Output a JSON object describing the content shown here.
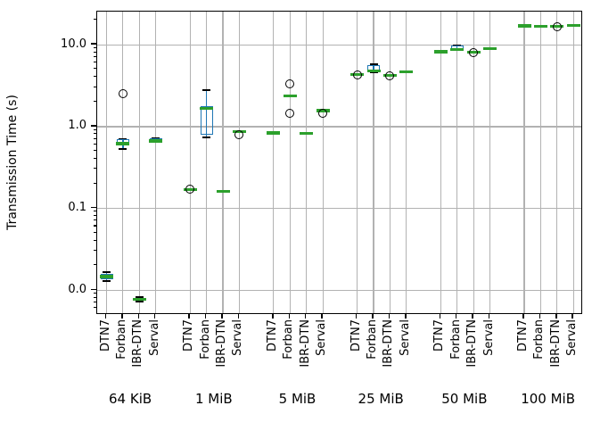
{
  "figure": {
    "ylabel": "Transmission Time (s)"
  },
  "colors": {
    "box_edge": "#1f77b4",
    "median": "#2ca02c",
    "whisker": "#1f77b4",
    "cap": "#000000",
    "flier_edge": "#000000",
    "grid": "#b2b2b2",
    "frame": "#000000",
    "background": "#ffffff"
  },
  "chart_data": {
    "type": "boxplot",
    "title": "",
    "xlabel": "",
    "ylabel": "Transmission Time (s)",
    "y_scale": "log",
    "ylim": [
      0.005,
      25.5
    ],
    "grid": "on",
    "legend": "none",
    "y_ticks": [
      {
        "value": 10,
        "label": "10.0"
      },
      {
        "value": 1,
        "label": "1.0"
      },
      {
        "value": 0.1,
        "label": "0.1"
      },
      {
        "value": 0.01,
        "label": "0.0"
      }
    ],
    "groups": [
      "64 KiB",
      "1 MiB",
      "5 MiB",
      "25 MiB",
      "50 MiB",
      "100 MiB"
    ],
    "tools": [
      "DTN7",
      "Forban",
      "IBR-DTN",
      "Serval"
    ],
    "boxes": [
      {
        "group": "64 KiB",
        "tool": "DTN7",
        "whislo": 0.013,
        "q1": 0.0135,
        "med": 0.0147,
        "q3": 0.0158,
        "whishi": 0.0165,
        "fliers": []
      },
      {
        "group": "64 KiB",
        "tool": "Forban",
        "whislo": 0.53,
        "q1": 0.6,
        "med": 0.62,
        "q3": 0.7,
        "whishi": 0.7,
        "fliers": [
          2.5
        ]
      },
      {
        "group": "64 KiB",
        "tool": "IBR-DTN",
        "whislo": 0.0072,
        "q1": 0.0077,
        "med": 0.0077,
        "q3": 0.0077,
        "whishi": 0.0082,
        "fliers": []
      },
      {
        "group": "64 KiB",
        "tool": "Serval",
        "whislo": 0.65,
        "q1": 0.65,
        "med": 0.67,
        "q3": 0.73,
        "whishi": 0.73,
        "fliers": []
      },
      {
        "group": "1 MiB",
        "tool": "DTN7",
        "whislo": 0.171,
        "q1": 0.171,
        "med": 0.171,
        "q3": 0.171,
        "whishi": 0.171,
        "fliers": [
          0.171
        ]
      },
      {
        "group": "1 MiB",
        "tool": "Forban",
        "whislo": 0.74,
        "q1": 0.79,
        "med": 1.68,
        "q3": 1.77,
        "whishi": 2.78,
        "fliers": []
      },
      {
        "group": "1 MiB",
        "tool": "IBR-DTN",
        "whislo": 0.162,
        "q1": 0.162,
        "med": 0.162,
        "q3": 0.162,
        "whishi": 0.162,
        "fliers": []
      },
      {
        "group": "1 MiB",
        "tool": "Serval",
        "whislo": 0.87,
        "q1": 0.87,
        "med": 0.87,
        "q3": 0.87,
        "whishi": 0.87,
        "fliers": [
          0.79
        ]
      },
      {
        "group": "5 MiB",
        "tool": "DTN7",
        "whislo": 0.84,
        "q1": 0.84,
        "med": 0.84,
        "q3": 0.84,
        "whishi": 0.84,
        "fliers": []
      },
      {
        "group": "5 MiB",
        "tool": "Forban",
        "whislo": 2.4,
        "q1": 2.4,
        "med": 2.4,
        "q3": 2.4,
        "whishi": 2.4,
        "fliers": [
          3.3,
          1.45
        ]
      },
      {
        "group": "5 MiB",
        "tool": "IBR-DTN",
        "whislo": 0.83,
        "q1": 0.83,
        "med": 0.83,
        "q3": 0.83,
        "whishi": 0.83,
        "fliers": []
      },
      {
        "group": "5 MiB",
        "tool": "Serval",
        "whislo": 1.57,
        "q1": 1.57,
        "med": 1.57,
        "q3": 1.57,
        "whishi": 1.57,
        "fliers": [
          1.46
        ]
      },
      {
        "group": "25 MiB",
        "tool": "DTN7",
        "whislo": 4.3,
        "q1": 4.3,
        "med": 4.3,
        "q3": 4.3,
        "whishi": 4.3,
        "fliers": [
          4.25
        ]
      },
      {
        "group": "25 MiB",
        "tool": "Forban",
        "whislo": 4.65,
        "q1": 4.65,
        "med": 4.8,
        "q3": 5.6,
        "whishi": 5.75,
        "fliers": []
      },
      {
        "group": "25 MiB",
        "tool": "IBR-DTN",
        "whislo": 4.2,
        "q1": 4.2,
        "med": 4.2,
        "q3": 4.2,
        "whishi": 4.2,
        "fliers": [
          4.15
        ]
      },
      {
        "group": "25 MiB",
        "tool": "Serval",
        "whislo": 4.7,
        "q1": 4.7,
        "med": 4.7,
        "q3": 4.7,
        "whishi": 4.7,
        "fliers": []
      },
      {
        "group": "50 MiB",
        "tool": "DTN7",
        "whislo": 8.25,
        "q1": 8.25,
        "med": 8.25,
        "q3": 8.25,
        "whishi": 8.25,
        "fliers": []
      },
      {
        "group": "50 MiB",
        "tool": "Forban",
        "whislo": 8.6,
        "q1": 8.6,
        "med": 8.75,
        "q3": 9.7,
        "whishi": 9.9,
        "fliers": []
      },
      {
        "group": "50 MiB",
        "tool": "IBR-DTN",
        "whislo": 8.2,
        "q1": 8.2,
        "med": 8.2,
        "q3": 8.2,
        "whishi": 8.2,
        "fliers": [
          8.1
        ]
      },
      {
        "group": "50 MiB",
        "tool": "Serval",
        "whislo": 9.0,
        "q1": 9.0,
        "med": 9.0,
        "q3": 9.0,
        "whishi": 9.0,
        "fliers": []
      },
      {
        "group": "100 MiB",
        "tool": "DTN7",
        "whislo": 17.1,
        "q1": 17.1,
        "med": 17.1,
        "q3": 17.1,
        "whishi": 17.1,
        "fliers": []
      },
      {
        "group": "100 MiB",
        "tool": "Forban",
        "whislo": 16.9,
        "q1": 16.9,
        "med": 16.9,
        "q3": 16.9,
        "whishi": 16.9,
        "fliers": []
      },
      {
        "group": "100 MiB",
        "tool": "IBR-DTN",
        "whislo": 16.9,
        "q1": 16.9,
        "med": 16.9,
        "q3": 16.9,
        "whishi": 16.9,
        "fliers": [
          16.7
        ]
      },
      {
        "group": "100 MiB",
        "tool": "Serval",
        "whislo": 17.3,
        "q1": 17.3,
        "med": 17.3,
        "q3": 17.3,
        "whishi": 17.3,
        "fliers": []
      }
    ]
  }
}
